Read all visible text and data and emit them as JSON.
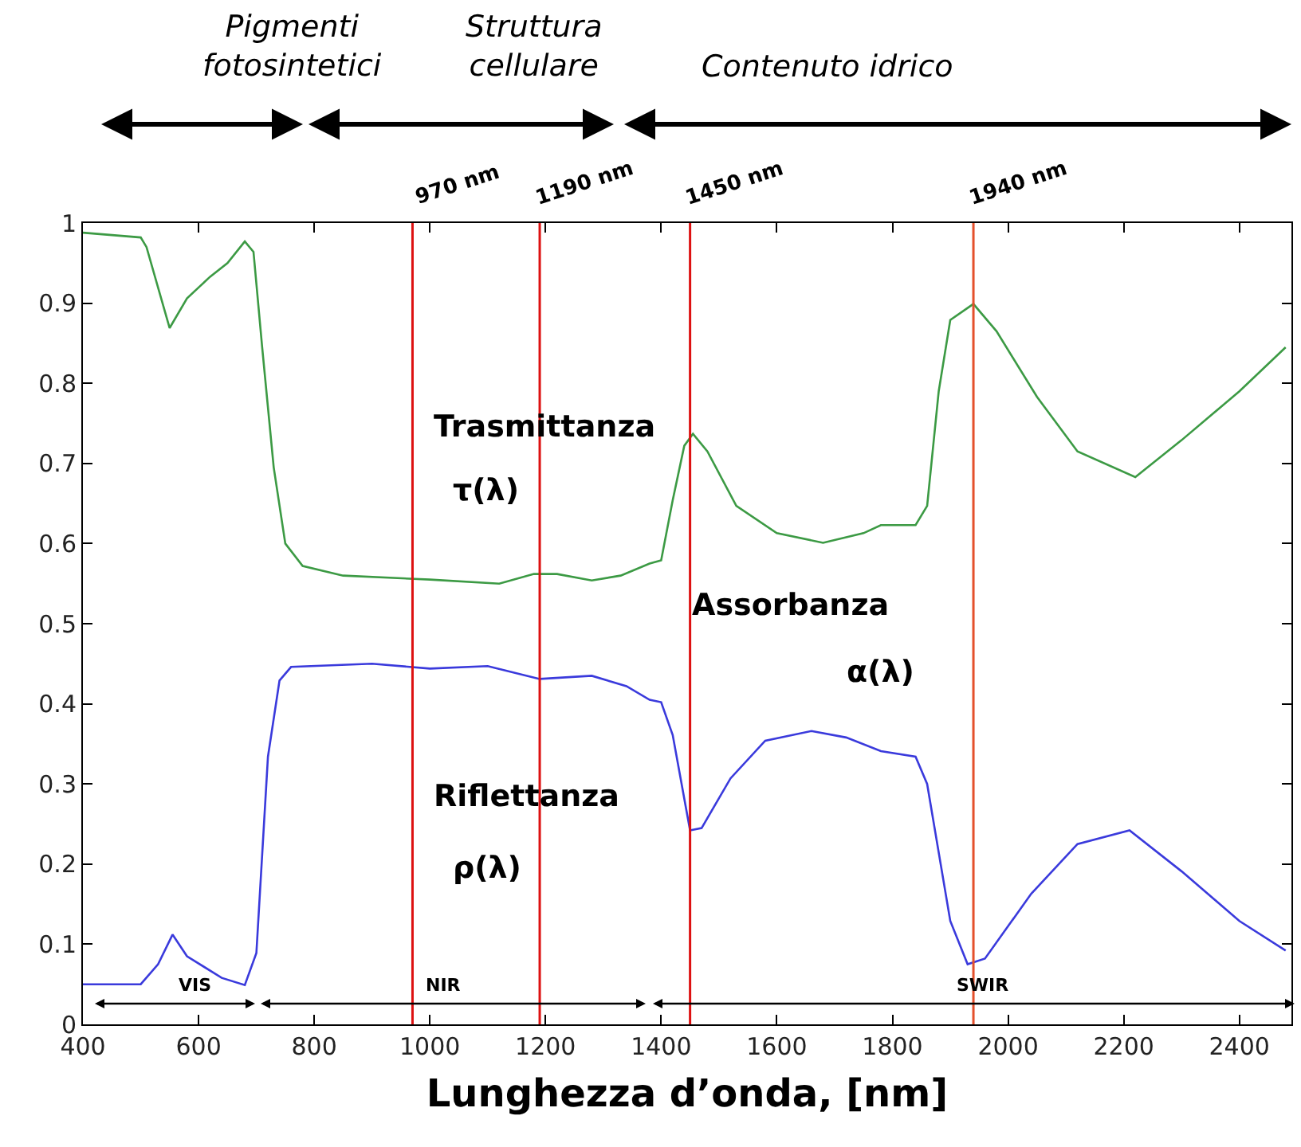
{
  "chart_data": {
    "type": "line",
    "xlabel": "Lunghezza d’onda, [nm]",
    "xlim": [
      400,
      2490
    ],
    "xticks": [
      400,
      600,
      800,
      1000,
      1200,
      1400,
      1600,
      1800,
      2000,
      2200,
      2400
    ],
    "ylim": [
      0,
      1
    ],
    "yticks": [
      0,
      0.1,
      0.2,
      0.3,
      0.4,
      0.5,
      0.6,
      0.7,
      0.8,
      0.9,
      1
    ],
    "grid": false,
    "marker": "none",
    "line_style": "solid",
    "series": [
      {
        "color": "#3c9a44",
        "x": [
          400,
          500,
          510,
          550,
          580,
          620,
          650,
          680,
          695,
          710,
          730,
          750,
          780,
          850,
          1000,
          1120,
          1180,
          1220,
          1280,
          1330,
          1380,
          1400,
          1420,
          1440,
          1455,
          1480,
          1530,
          1600,
          1680,
          1750,
          1780,
          1840,
          1860,
          1880,
          1900,
          1940,
          1980,
          2050,
          2120,
          2220,
          2300,
          2400,
          2480
        ],
        "values": [
          0.988,
          0.982,
          0.97,
          0.869,
          0.906,
          0.933,
          0.95,
          0.977,
          0.964,
          0.845,
          0.695,
          0.6,
          0.572,
          0.56,
          0.555,
          0.55,
          0.562,
          0.562,
          0.554,
          0.56,
          0.575,
          0.579,
          0.654,
          0.722,
          0.737,
          0.715,
          0.647,
          0.613,
          0.601,
          0.613,
          0.623,
          0.623,
          0.647,
          0.79,
          0.879,
          0.899,
          0.865,
          0.783,
          0.715,
          0.683,
          0.729,
          0.79,
          0.845
        ]
      },
      {
        "color": "#3a3adc",
        "x": [
          400,
          500,
          530,
          555,
          580,
          640,
          680,
          700,
          720,
          740,
          760,
          900,
          1000,
          1100,
          1190,
          1280,
          1340,
          1380,
          1400,
          1420,
          1450,
          1470,
          1520,
          1580,
          1660,
          1720,
          1780,
          1840,
          1860,
          1900,
          1930,
          1960,
          2040,
          2120,
          2210,
          2300,
          2400,
          2480
        ],
        "values": [
          0.05,
          0.05,
          0.075,
          0.112,
          0.085,
          0.058,
          0.049,
          0.089,
          0.334,
          0.429,
          0.446,
          0.45,
          0.444,
          0.447,
          0.431,
          0.435,
          0.422,
          0.405,
          0.402,
          0.361,
          0.242,
          0.245,
          0.307,
          0.354,
          0.366,
          0.358,
          0.341,
          0.334,
          0.3,
          0.129,
          0.075,
          0.082,
          0.163,
          0.225,
          0.242,
          0.191,
          0.129,
          0.092
        ]
      }
    ],
    "ref_lines": [
      {
        "axis": "x",
        "value": 970,
        "label": "970 nm",
        "color": "#dd1111"
      },
      {
        "axis": "x",
        "value": 1190,
        "label": "1190 nm",
        "color": "#dd1111"
      },
      {
        "axis": "x",
        "value": 1450,
        "label": "1450 nm",
        "color": "#dd1111"
      },
      {
        "axis": "x",
        "value": 1940,
        "label": "1940 nm",
        "color": "#e4502c"
      }
    ],
    "annotations": [
      "Pigmenti\nfotosintetici",
      "Struttura\ncellulare",
      "Contenuto idrico",
      "Trasmittanza",
      "τ(λ)",
      "Assorbanza",
      "α(λ)",
      "Riflettanza",
      "ρ(λ)",
      "VIS",
      "NIR",
      "SWIR"
    ]
  }
}
